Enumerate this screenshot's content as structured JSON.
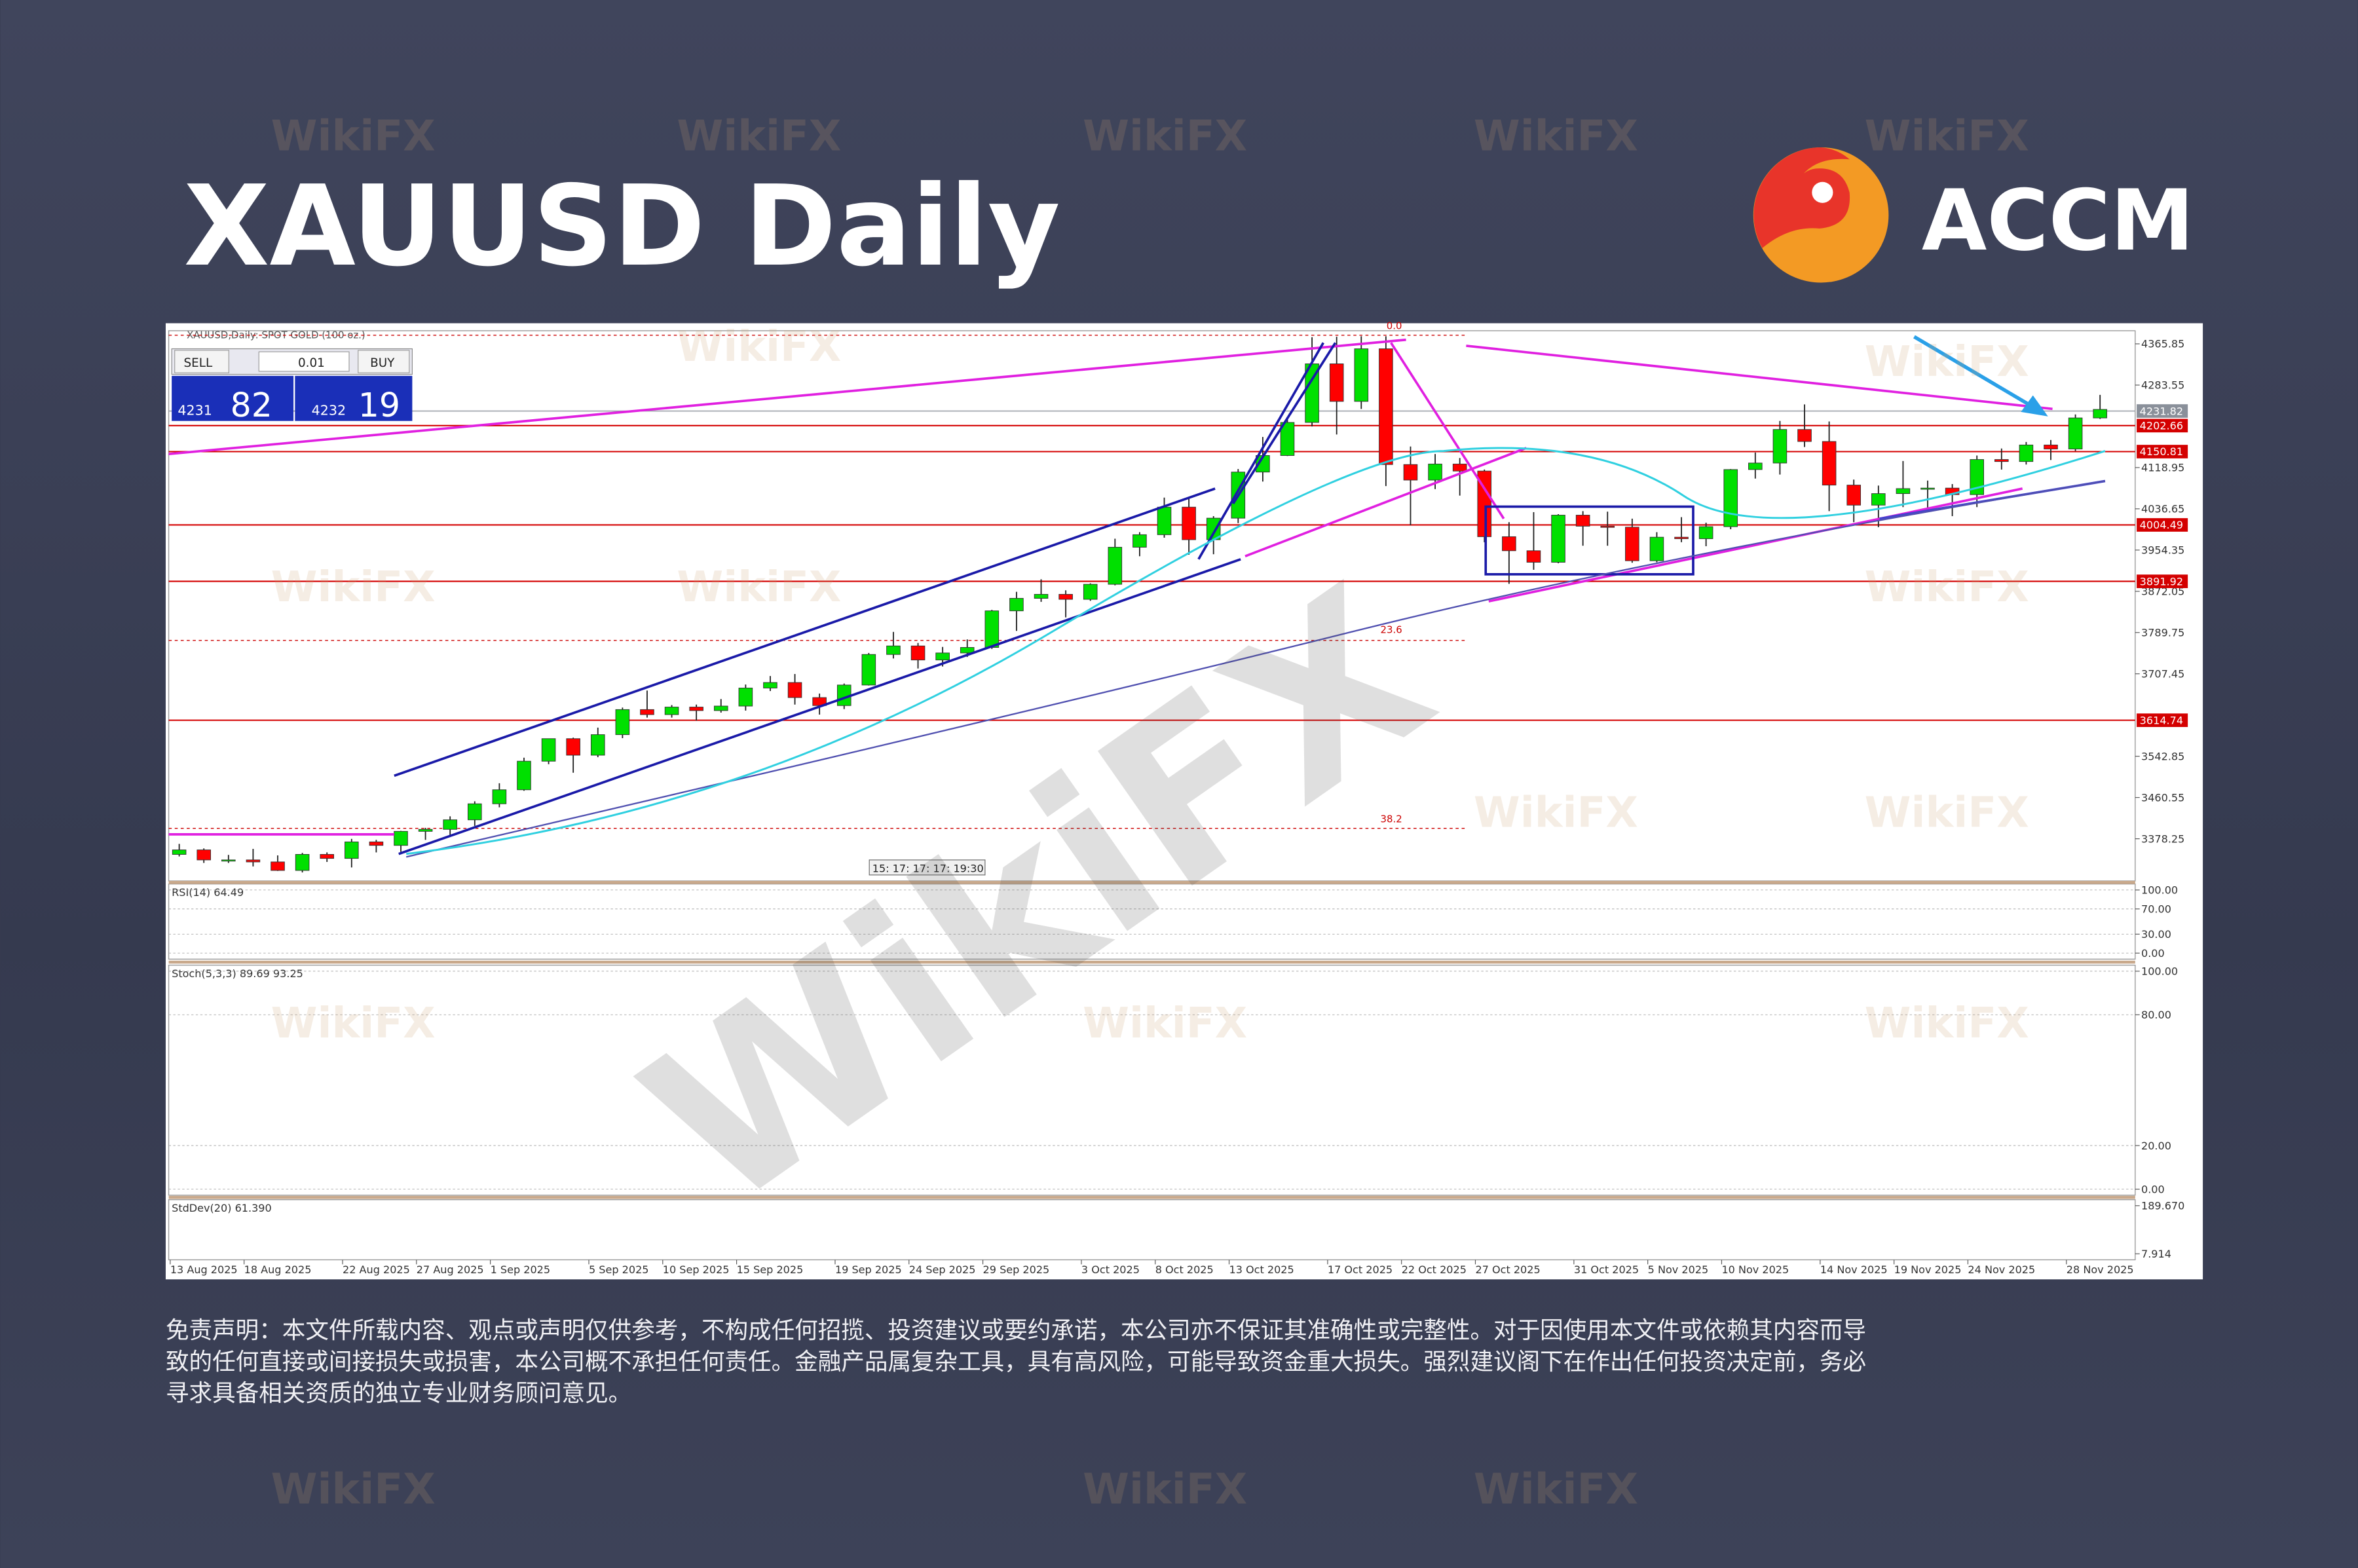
{
  "header": {
    "title": "XAUUSD Daily",
    "logo": "ACCM"
  },
  "trade_panel": {
    "sell": "SELL",
    "buy": "BUY",
    "lot": "0.01",
    "sell_big": "4231",
    "sell_small": "82",
    "buy_big": "4232",
    "buy_small": "19"
  },
  "chart_data": {
    "type": "candlestick",
    "title": "XAUUSD,Daily: SPOT GOLD (100 oz.)",
    "categories": [
      "13 Aug 2025",
      null,
      null,
      "18 Aug 2025",
      null,
      null,
      null,
      "22 Aug 2025",
      null,
      null,
      "27 Aug 2025",
      null,
      null,
      "1 Sep 2025",
      null,
      null,
      null,
      "5 Sep 2025",
      null,
      null,
      "10 Sep 2025",
      null,
      null,
      "15 Sep 2025",
      null,
      null,
      null,
      "19 Sep 2025",
      null,
      null,
      "24 Sep 2025",
      null,
      null,
      "29 Sep 2025",
      null,
      null,
      null,
      "3 Oct 2025",
      null,
      null,
      "8 Oct 2025",
      null,
      null,
      "13 Oct 2025",
      null,
      null,
      null,
      "17 Oct 2025",
      null,
      null,
      "22 Oct 2025",
      null,
      null,
      "27 Oct 2025",
      null,
      null,
      null,
      "31 Oct 2025",
      null,
      null,
      "5 Nov 2025",
      null,
      null,
      "10 Nov 2025",
      null,
      null,
      null,
      "14 Nov 2025",
      null,
      null,
      "19 Nov 2025",
      null,
      null,
      "24 Nov 2025",
      null,
      null,
      null,
      "28 Nov 2025",
      null
    ],
    "open": [
      3347,
      3356,
      3336,
      3336,
      3332,
      3315,
      3347,
      3339,
      3372,
      3365,
      3393,
      3397,
      3416,
      3448,
      3476,
      3533,
      3578,
      3545,
      3586,
      3636,
      3626,
      3641,
      3634,
      3643,
      3679,
      3690,
      3660,
      3644,
      3685,
      3746,
      3763,
      3735,
      3749,
      3760,
      3833,
      3858,
      3866,
      3856,
      3886,
      3960,
      3985,
      4040,
      3975,
      4018,
      4110,
      4143,
      4209,
      4326,
      4251,
      4356,
      4125,
      4094,
      4126,
      4112,
      3981,
      3953,
      3930,
      4024,
      4002,
      4000,
      3933,
      3980,
      3977,
      4001,
      4115,
      4128,
      4195,
      4171,
      4084,
      4044,
      4067,
      4077,
      4078,
      4065,
      4135,
      4131,
      4164,
      4156,
      4218
    ],
    "high": [
      3368,
      3359,
      3346,
      3358,
      3345,
      3350,
      3351,
      3378,
      3376,
      3394,
      3400,
      3423,
      3453,
      3489,
      3540,
      3578,
      3580,
      3600,
      3640,
      3674,
      3645,
      3646,
      3657,
      3686,
      3703,
      3707,
      3668,
      3688,
      3749,
      3791,
      3769,
      3761,
      3776,
      3835,
      3871,
      3896,
      3874,
      3888,
      3977,
      3990,
      4059,
      4058,
      4022,
      4116,
      4180,
      4218,
      4379,
      4380,
      4381,
      4381,
      4161,
      4146,
      4138,
      4115,
      4010,
      4030,
      4026,
      4032,
      4031,
      4017,
      3990,
      4020,
      4009,
      4116,
      4149,
      4212,
      4245,
      4211,
      4095,
      4083,
      4132,
      4093,
      4086,
      4143,
      4157,
      4170,
      4174,
      4225,
      4264
    ],
    "low": [
      3343,
      3330,
      3330,
      3323,
      3314,
      3311,
      3332,
      3321,
      3351,
      3352,
      3376,
      3384,
      3404,
      3441,
      3474,
      3527,
      3510,
      3541,
      3579,
      3620,
      3620,
      3614,
      3630,
      3634,
      3673,
      3646,
      3626,
      3637,
      3684,
      3738,
      3718,
      3722,
      3741,
      3757,
      3793,
      3851,
      3820,
      3853,
      3884,
      3942,
      3979,
      3945,
      3946,
      4008,
      4091,
      4142,
      4201,
      4185,
      4236,
      4082,
      4004,
      4076,
      4063,
      3970,
      3887,
      3915,
      3928,
      3963,
      3963,
      3929,
      3930,
      3970,
      3962,
      3996,
      4097,
      4105,
      4160,
      4032,
      4010,
      4000,
      4040,
      4038,
      4022,
      4040,
      4115,
      4125,
      4134,
      4152,
      4216
    ],
    "close": [
      3356,
      3336,
      3336,
      3332,
      3315,
      3347,
      3339,
      3372,
      3365,
      3393,
      3397,
      3416,
      3448,
      3476,
      3533,
      3578,
      3545,
      3586,
      3636,
      3626,
      3641,
      3634,
      3643,
      3679,
      3690,
      3660,
      3644,
      3685,
      3746,
      3763,
      3735,
      3749,
      3760,
      3833,
      3858,
      3866,
      3856,
      3886,
      3960,
      3985,
      4040,
      3975,
      4018,
      4110,
      4143,
      4209,
      4326,
      4251,
      4356,
      4125,
      4094,
      4126,
      4112,
      3981,
      3953,
      3930,
      4024,
      4002,
      4000,
      3933,
      3980,
      3977,
      4001,
      4115,
      4128,
      4195,
      4171,
      4084,
      4044,
      4067,
      4077,
      4078,
      4065,
      4135,
      4131,
      4164,
      4156,
      4218,
      4235
    ],
    "up_color": "#00e000",
    "down_color": "#ff0000",
    "ylim": [
      3294,
      4392
    ],
    "yticks": [
      4365.85,
      4283.55,
      4118.95,
      4036.65,
      3954.35,
      3872.05,
      3789.75,
      3707.45,
      3542.85,
      3460.55,
      3378.25
    ],
    "levels": [
      4202.66,
      4150.81,
      4004.49,
      3891.92,
      3614.74
    ],
    "level_color": "#d40000",
    "current_price": 4231.82,
    "fib_labels": [
      "0.0",
      "23.6",
      "38.2"
    ],
    "time_labels": "15: 17: 17: 17: 19:30",
    "indicators": [
      {
        "label": "RSI(14) 64.49",
        "ylim": [
          0,
          100
        ],
        "yticks": [
          {
            "value": 100,
            "label": "100.00"
          },
          {
            "value": 70,
            "label": "70.00"
          },
          {
            "value": 30,
            "label": "30.00"
          },
          {
            "value": 0,
            "label": "0.00"
          }
        ]
      },
      {
        "label": "Stoch(5,3,3) 89.69 93.25",
        "ylim": [
          0,
          100
        ],
        "yticks": [
          {
            "value": 100,
            "label": "100.00"
          },
          {
            "value": 80,
            "label": "80.00"
          },
          {
            "value": 20,
            "label": "20.00"
          },
          {
            "value": 0,
            "label": "0.00"
          }
        ]
      },
      {
        "label": "StdDev(20) 61.390",
        "ylim": [
          7.914,
          189.67
        ],
        "yticks": [
          {
            "value": 189.67,
            "label": "189.670"
          },
          7.914
        ]
      }
    ]
  },
  "disclaimer": [
    "免责声明：本文件所载内容、观点或声明仅供参考，不构成任何招揽、投资建议或要约承诺，本公司亦不保证其准确性或完整性。对于因使用本文件或依赖其内容而导",
    "致的任何直接或间接损失或损害，本公司概不承担任何责任。金融产品属复杂工具，具有高风险，可能导致资金重大损失。强烈建议阁下在作出任何投资决定前，务必",
    "寻求具备相关资质的独立专业财务顾问意见。"
  ],
  "watermark": "WikiFX"
}
